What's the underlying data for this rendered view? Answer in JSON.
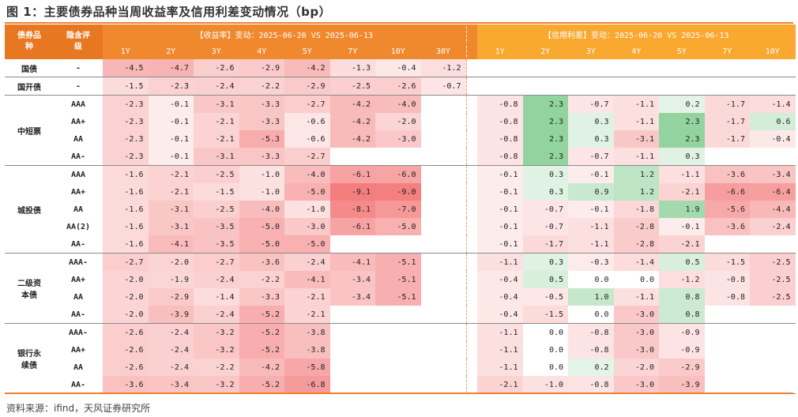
{
  "title": "图 1：主要债券品种当周收益率及信用利差变动情况（bp）",
  "source": "资料来源：ifind，天风证券研究所",
  "header": {
    "col_type": "债券品种",
    "col_rating": "隐含评级",
    "yield_title": "【收益率】变动：2025-06-20 VS 2025-06-13",
    "spread_title": "【信用利差】变动：2025-06-20 VS 2025-06-13",
    "yield_tenors": [
      "1Y",
      "2Y",
      "3Y",
      "4Y",
      "5Y",
      "7Y",
      "10Y",
      "30Y"
    ],
    "spread_tenors": [
      "1Y",
      "2Y",
      "3Y",
      "4Y",
      "5Y",
      "7Y",
      "10Y"
    ]
  },
  "groups": [
    {
      "name": "国债",
      "rows": [
        {
          "rating": "-",
          "yield": [
            "-4.5",
            "-4.7",
            "-2.6",
            "-2.9",
            "-4.2",
            "-1.3",
            "-0.4",
            "-1.2"
          ],
          "spread": [
            "",
            "",
            "",
            "",
            "",
            "",
            ""
          ]
        }
      ]
    },
    {
      "name": "国开债",
      "rows": [
        {
          "rating": "-",
          "yield": [
            "-1.5",
            "-2.3",
            "-2.4",
            "-2.2",
            "-2.9",
            "-2.5",
            "-2.6",
            "-0.7"
          ],
          "spread": [
            "",
            "",
            "",
            "",
            "",
            "",
            ""
          ]
        }
      ]
    },
    {
      "name": "中短票",
      "rows": [
        {
          "rating": "AAA",
          "yield": [
            "-2.3",
            "-0.1",
            "-3.1",
            "-3.3",
            "-2.7",
            "-4.2",
            "-4.0",
            ""
          ],
          "spread": [
            "-0.8",
            "2.3",
            "-0.7",
            "-1.1",
            "0.2",
            "-1.7",
            "-1.4"
          ]
        },
        {
          "rating": "AA+",
          "yield": [
            "-2.3",
            "-0.1",
            "-2.1",
            "-3.3",
            "-0.6",
            "-4.2",
            "-2.0",
            ""
          ],
          "spread": [
            "-0.8",
            "2.3",
            "0.3",
            "-1.1",
            "2.3",
            "-1.7",
            "0.6"
          ]
        },
        {
          "rating": "AA",
          "yield": [
            "-2.3",
            "-0.1",
            "-2.1",
            "-5.3",
            "-0.6",
            "-4.2",
            "-3.0",
            ""
          ],
          "spread": [
            "-0.8",
            "2.3",
            "0.3",
            "-3.1",
            "2.3",
            "-1.7",
            "-0.4"
          ]
        },
        {
          "rating": "AA-",
          "yield": [
            "-2.3",
            "-0.1",
            "-3.1",
            "-3.3",
            "-2.7",
            "",
            "",
            ""
          ],
          "spread": [
            "-0.8",
            "2.3",
            "-0.7",
            "-1.1",
            "0.3",
            "",
            ""
          ]
        }
      ]
    },
    {
      "name": "城投债",
      "rows": [
        {
          "rating": "AAA",
          "yield": [
            "-1.6",
            "-2.1",
            "-2.5",
            "-1.0",
            "-4.0",
            "-6.1",
            "-6.0",
            ""
          ],
          "spread": [
            "-0.1",
            "0.3",
            "-0.1",
            "1.2",
            "-1.1",
            "-3.6",
            "-3.4"
          ]
        },
        {
          "rating": "AA+",
          "yield": [
            "-1.6",
            "-2.1",
            "-1.5",
            "-1.0",
            "-5.0",
            "-9.1",
            "-9.0",
            ""
          ],
          "spread": [
            "-0.1",
            "0.3",
            "0.9",
            "1.2",
            "-2.1",
            "-6.6",
            "-6.4"
          ]
        },
        {
          "rating": "AA",
          "yield": [
            "-1.6",
            "-3.1",
            "-2.5",
            "-4.0",
            "-1.0",
            "-8.1",
            "-7.0",
            ""
          ],
          "spread": [
            "-0.1",
            "-0.7",
            "-0.1",
            "-1.8",
            "1.9",
            "-5.6",
            "-4.4"
          ]
        },
        {
          "rating": "AA(2)",
          "yield": [
            "-1.6",
            "-3.1",
            "-3.5",
            "-5.0",
            "-3.0",
            "-6.1",
            "-5.0",
            ""
          ],
          "spread": [
            "-0.1",
            "-0.7",
            "-1.1",
            "-2.8",
            "-0.1",
            "-3.6",
            "-2.4"
          ]
        },
        {
          "rating": "AA-",
          "yield": [
            "-1.6",
            "-4.1",
            "-3.5",
            "-5.0",
            "-5.0",
            "",
            "",
            ""
          ],
          "spread": [
            "-0.1",
            "-1.7",
            "-1.1",
            "-2.8",
            "-2.1",
            "",
            ""
          ]
        }
      ]
    },
    {
      "name": "二级资本债",
      "rows": [
        {
          "rating": "AAA-",
          "yield": [
            "-2.7",
            "-2.0",
            "-2.7",
            "-3.6",
            "-2.4",
            "-4.1",
            "-5.1",
            ""
          ],
          "spread": [
            "-1.1",
            "0.3",
            "-0.3",
            "-1.4",
            "0.5",
            "-1.5",
            "-2.5"
          ]
        },
        {
          "rating": "AA+",
          "yield": [
            "-2.0",
            "-1.9",
            "-2.4",
            "-2.2",
            "-4.1",
            "-3.4",
            "-5.1",
            ""
          ],
          "spread": [
            "-0.4",
            "0.5",
            "0.0",
            "0.0",
            "-1.2",
            "-0.8",
            "-2.5"
          ]
        },
        {
          "rating": "AA",
          "yield": [
            "-2.0",
            "-2.9",
            "-1.4",
            "-3.3",
            "-2.1",
            "-3.4",
            "-5.1",
            ""
          ],
          "spread": [
            "-0.4",
            "-0.5",
            "1.0",
            "-1.1",
            "0.8",
            "-0.8",
            "-2.5"
          ]
        },
        {
          "rating": "AA-",
          "yield": [
            "-2.0",
            "-3.9",
            "-2.4",
            "-5.2",
            "-2.1",
            "",
            "",
            ""
          ],
          "spread": [
            "-0.4",
            "-1.5",
            "0.0",
            "-3.0",
            "0.8",
            "",
            ""
          ]
        }
      ]
    },
    {
      "name": "银行永续债",
      "rows": [
        {
          "rating": "AAA-",
          "yield": [
            "-2.6",
            "-2.4",
            "-3.2",
            "-5.2",
            "-3.8",
            "",
            "",
            ""
          ],
          "spread": [
            "-1.1",
            "0.0",
            "-0.8",
            "-3.0",
            "-0.9",
            "",
            ""
          ]
        },
        {
          "rating": "AA+",
          "yield": [
            "-2.6",
            "-2.4",
            "-3.2",
            "-5.2",
            "-3.8",
            "",
            "",
            ""
          ],
          "spread": [
            "-1.1",
            "0.0",
            "-0.8",
            "-3.0",
            "-0.9",
            "",
            ""
          ]
        },
        {
          "rating": "AA",
          "yield": [
            "-2.6",
            "-2.4",
            "-2.2",
            "-4.2",
            "-5.8",
            "",
            "",
            ""
          ],
          "spread": [
            "-1.1",
            "0.0",
            "0.2",
            "-2.0",
            "-2.9",
            "",
            ""
          ]
        },
        {
          "rating": "AA-",
          "yield": [
            "-3.6",
            "-3.4",
            "-3.2",
            "-5.2",
            "-6.8",
            "",
            "",
            ""
          ],
          "spread": [
            "-2.1",
            "-1.0",
            "-0.8",
            "-3.0",
            "-3.9",
            "",
            ""
          ]
        }
      ]
    }
  ],
  "colors": {
    "accent": "#e87722",
    "header_yield": "#f0892e",
    "header_spread": "#f9a830",
    "negative": "#f26b6b",
    "positive": "#8fd49b"
  }
}
